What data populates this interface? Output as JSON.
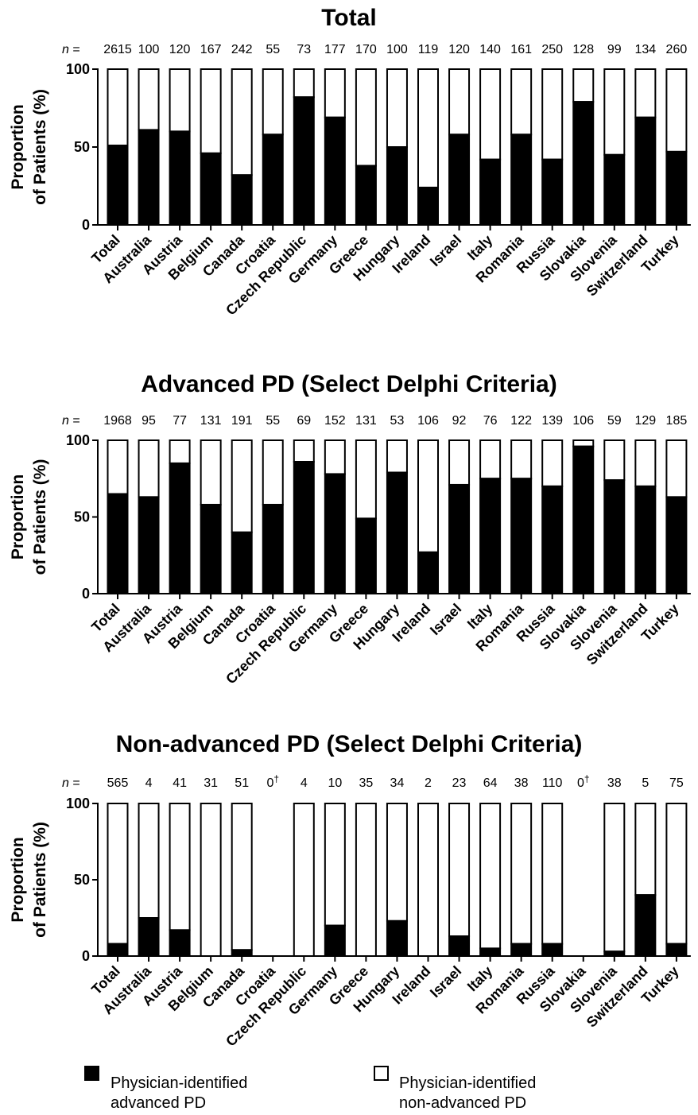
{
  "colors": {
    "advanced": "#000000",
    "non_advanced": "#ffffff",
    "stroke": "#000000"
  },
  "legend": {
    "advanced_line1": "Physician-identified",
    "advanced_line2": "advanced PD",
    "non_advanced_line1": "Physician-identified",
    "non_advanced_line2": "non-advanced PD"
  },
  "n_prefix": "n",
  "n_equals": " =",
  "chart_data": [
    {
      "type": "bar",
      "stacked": true,
      "title": "Total",
      "ylabel_line1": "Proportion",
      "ylabel_line2": "of Patients (%)",
      "ylim": [
        0,
        100
      ],
      "yticks": [
        0,
        50,
        100
      ],
      "categories": [
        "Total",
        "Australia",
        "Austria",
        "Belgium",
        "Canada",
        "Croatia",
        "Czech Republic",
        "Germany",
        "Greece",
        "Hungary",
        "Ireland",
        "Israel",
        "Italy",
        "Romania",
        "Russia",
        "Slovakia",
        "Slovenia",
        "Switzerland",
        "Turkey"
      ],
      "n": [
        "2615",
        "100",
        "120",
        "167",
        "242",
        "55",
        "73",
        "177",
        "170",
        "100",
        "119",
        "120",
        "140",
        "161",
        "250",
        "128",
        "99",
        "134",
        "260"
      ],
      "n_dagger": [
        false,
        false,
        false,
        false,
        false,
        false,
        false,
        false,
        false,
        false,
        false,
        false,
        false,
        false,
        false,
        false,
        false,
        false,
        false
      ],
      "series": [
        {
          "name": "Physician-identified advanced PD",
          "values": [
            51,
            61,
            60,
            46,
            32,
            58,
            82,
            69,
            38,
            50,
            24,
            58,
            42,
            58,
            42,
            79,
            45,
            69,
            47
          ]
        },
        {
          "name": "Physician-identified non-advanced PD",
          "values": [
            49,
            39,
            40,
            54,
            68,
            42,
            18,
            31,
            62,
            50,
            76,
            42,
            58,
            42,
            58,
            21,
            55,
            31,
            53
          ]
        }
      ]
    },
    {
      "type": "bar",
      "stacked": true,
      "title": "Advanced PD (Select Delphi Criteria)",
      "ylabel_line1": "Proportion",
      "ylabel_line2": "of Patients (%)",
      "ylim": [
        0,
        100
      ],
      "yticks": [
        0,
        50,
        100
      ],
      "categories": [
        "Total",
        "Australia",
        "Austria",
        "Belgium",
        "Canada",
        "Croatia",
        "Czech Republic",
        "Germany",
        "Greece",
        "Hungary",
        "Ireland",
        "Israel",
        "Italy",
        "Romania",
        "Russia",
        "Slovakia",
        "Slovenia",
        "Switzerland",
        "Turkey"
      ],
      "n": [
        "1968",
        "95",
        "77",
        "131",
        "191",
        "55",
        "69",
        "152",
        "131",
        "53",
        "106",
        "92",
        "76",
        "122",
        "139",
        "106",
        "59",
        "129",
        "185"
      ],
      "n_dagger": [
        false,
        false,
        false,
        false,
        false,
        false,
        false,
        false,
        false,
        false,
        false,
        false,
        false,
        false,
        false,
        false,
        false,
        false,
        false
      ],
      "series": [
        {
          "name": "Physician-identified advanced PD",
          "values": [
            65,
            63,
            85,
            58,
            40,
            58,
            86,
            78,
            49,
            79,
            27,
            71,
            75,
            75,
            70,
            96,
            74,
            70,
            63
          ]
        },
        {
          "name": "Physician-identified non-advanced PD",
          "values": [
            35,
            37,
            15,
            42,
            60,
            42,
            14,
            22,
            51,
            21,
            73,
            29,
            25,
            25,
            30,
            4,
            26,
            30,
            37
          ]
        }
      ]
    },
    {
      "type": "bar",
      "stacked": true,
      "title": "Non-advanced PD (Select Delphi Criteria)",
      "ylabel_line1": "Proportion",
      "ylabel_line2": "of Patients (%)",
      "ylim": [
        0,
        100
      ],
      "yticks": [
        0,
        50,
        100
      ],
      "categories": [
        "Total",
        "Australia",
        "Austria",
        "Belgium",
        "Canada",
        "Croatia",
        "Czech Republic",
        "Germany",
        "Greece",
        "Hungary",
        "Ireland",
        "Israel",
        "Italy",
        "Romania",
        "Russia",
        "Slovakia",
        "Slovenia",
        "Switzerland",
        "Turkey"
      ],
      "n": [
        "565",
        "4",
        "41",
        "31",
        "51",
        "0",
        "4",
        "10",
        "35",
        "34",
        "2",
        "23",
        "64",
        "38",
        "110",
        "0",
        "38",
        "5",
        "75"
      ],
      "n_dagger": [
        false,
        false,
        false,
        false,
        false,
        true,
        false,
        false,
        false,
        false,
        false,
        false,
        false,
        false,
        false,
        true,
        false,
        false,
        false
      ],
      "dagger_symbol": "†",
      "series": [
        {
          "name": "Physician-identified advanced PD",
          "values": [
            8,
            25,
            17,
            0,
            4,
            0,
            0,
            20,
            0,
            23,
            0,
            13,
            5,
            8,
            8,
            0,
            3,
            40,
            8
          ]
        },
        {
          "name": "Physician-identified non-advanced PD",
          "values": [
            92,
            75,
            83,
            100,
            96,
            0,
            100,
            80,
            100,
            77,
            100,
            87,
            95,
            92,
            92,
            0,
            97,
            60,
            92
          ]
        }
      ]
    }
  ]
}
